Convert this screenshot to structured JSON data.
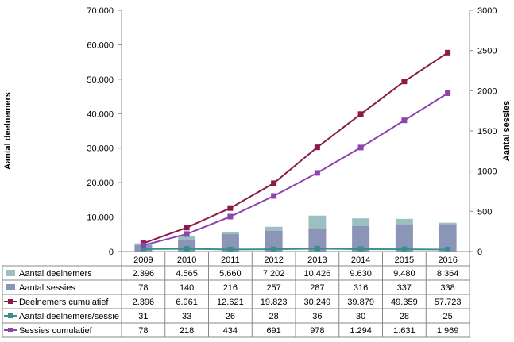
{
  "chart_data": {
    "type": "bar",
    "categories": [
      "2009",
      "2010",
      "2011",
      "2012",
      "2013",
      "2014",
      "2015",
      "2016"
    ],
    "ylabel": "Aantal deelnemers",
    "y2label": "Aantal sessies",
    "ylim": [
      0,
      70000
    ],
    "y2lim": [
      0,
      3000
    ],
    "yticks": [
      "0",
      "10.000",
      "20.000",
      "30.000",
      "40.000",
      "50.000",
      "60.000",
      "70.000"
    ],
    "y2ticks": [
      "0",
      "500",
      "1000",
      "1500",
      "2000",
      "2500",
      "3000"
    ],
    "grid": false,
    "legend": "data table below chart",
    "series": [
      {
        "name": "Aantal deelnemers",
        "kind": "bar",
        "axis": "left",
        "color": "#9ebfc2",
        "values": [
          2396,
          4565,
          5660,
          7202,
          10426,
          9630,
          9480,
          8364
        ],
        "labels": [
          "2.396",
          "4.565",
          "5.660",
          "7.202",
          "10.426",
          "9.630",
          "9.480",
          "8.364"
        ]
      },
      {
        "name": "Aantal sessies",
        "kind": "bar",
        "axis": "right",
        "color": "#8b95b8",
        "values": [
          78,
          140,
          216,
          257,
          287,
          316,
          337,
          338
        ],
        "labels": [
          "78",
          "140",
          "216",
          "257",
          "287",
          "316",
          "337",
          "338"
        ]
      },
      {
        "name": "Deelnemers cumulatief",
        "kind": "line",
        "axis": "left",
        "color": "#8b1a4a",
        "values": [
          2396,
          6961,
          12621,
          19823,
          30249,
          39879,
          49359,
          57723
        ],
        "labels": [
          "2.396",
          "6.961",
          "12.621",
          "19.823",
          "30.249",
          "39.879",
          "49.359",
          "57.723"
        ]
      },
      {
        "name": "Aantal deelnemers/sessie",
        "kind": "line",
        "axis": "right",
        "color": "#3a8e8e",
        "values": [
          31,
          33,
          26,
          28,
          36,
          30,
          28,
          25
        ],
        "labels": [
          "31",
          "33",
          "26",
          "28",
          "36",
          "30",
          "28",
          "25"
        ]
      },
      {
        "name": "Sessies cumulatief",
        "kind": "line",
        "axis": "right",
        "color": "#8e44ad",
        "values": [
          78,
          218,
          434,
          691,
          978,
          1294,
          1631,
          1969
        ],
        "labels": [
          "78",
          "218",
          "434",
          "691",
          "978",
          "1.294",
          "1.631",
          "1.969"
        ]
      }
    ]
  }
}
